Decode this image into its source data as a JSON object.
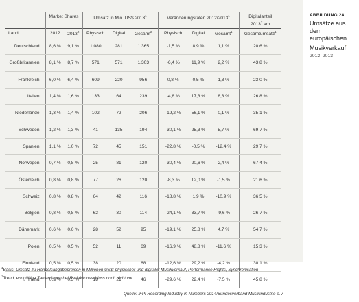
{
  "side": {
    "label": "ABBILDUNG 28:",
    "title_lines": [
      "Umsätze aus dem",
      "europäischen",
      "Musikverkauf"
    ],
    "title_sup": "1",
    "subtitle": "2012–2013"
  },
  "header": {
    "group_market": "Market Shares",
    "group_umsatz": "Umsatz in Mio. US$ 2013",
    "group_umsatz_sup": "1",
    "group_change": "Veränderungsraten 2012/2013",
    "group_change_sup": "1",
    "group_digital": "Digitalanteil",
    "group_digital2": "2013",
    "group_digital2_sup": "2",
    "group_digital3": " am",
    "col_land": "Land",
    "col_2012": "2012",
    "col_2013": "2013",
    "col_2013_sup": "2",
    "col_physisch": "Physisch",
    "col_digital": "Digital",
    "col_gesamt": "Gesamt",
    "col_gesamt_sup": "2",
    "col_physisch2": "Physisch",
    "col_digital2": "Digital",
    "col_gesamt2": "Gesamt",
    "col_gesamt2_sup": "1",
    "col_gesamtumsatz": "Gesamtumsatz",
    "col_gesamtumsatz_sup": "1"
  },
  "rows": [
    [
      "Deutschland",
      "8,6 %",
      "9,1 %",
      "1.080",
      "281",
      "1.365",
      "-1,5 %",
      "8,9 %",
      "1,1 %",
      "20,6 %"
    ],
    [
      "Großbritannien",
      "8,1 %",
      "8,7 %",
      "571",
      "571",
      "1.303",
      "-6,4 %",
      "11,9 %",
      "2,2 %",
      "43,8 %"
    ],
    [
      "Frankreich",
      "6,0 %",
      "6,4 %",
      "609",
      "220",
      "956",
      "0,8 %",
      "0,5 %",
      "1,3 %",
      "23,0 %"
    ],
    [
      "Italien",
      "1,4 %",
      "1,6 %",
      "133",
      "64",
      "239",
      "-4,8 %",
      "17,3 %",
      "8,3 %",
      "26,8 %"
    ],
    [
      "Niederlande",
      "1,3 %",
      "1,4 %",
      "102",
      "72",
      "206",
      "-19,2 %",
      "56,1 %",
      "0,1 %",
      "35,1 %"
    ],
    [
      "Schweden",
      "1,2 %",
      "1,3 %",
      "41",
      "135",
      "194",
      "-30,1 %",
      "25,3 %",
      "5,7 %",
      "69,7 %"
    ],
    [
      "Spanien",
      "1,1 %",
      "1,0 %",
      "72",
      "45",
      "151",
      "-22,8 %",
      "-0,5 %",
      "-12,4 %",
      "29,7 %"
    ],
    [
      "Norwegen",
      "0,7 %",
      "0,8 %",
      "25",
      "81",
      "120",
      "-30,4 %",
      "20,6 %",
      "2,4 %",
      "67,4 %"
    ],
    [
      "Österreich",
      "0,8 %",
      "0,8 %",
      "77",
      "26",
      "120",
      "-8,3 %",
      "12,0 %",
      "-1,5 %",
      "21,6 %"
    ],
    [
      "Schweiz",
      "0,8 %",
      "0,8 %",
      "64",
      "42",
      "116",
      "-18,8 %",
      "1,9 %",
      "-10,9 %",
      "36,5 %"
    ],
    [
      "Belgien",
      "0,8 %",
      "0,8 %",
      "62",
      "30",
      "114",
      "-24,1 %",
      "33,7 %",
      "-9,6 %",
      "26,7 %"
    ],
    [
      "Dänemark",
      "0,6 %",
      "0,6 %",
      "28",
      "52",
      "95",
      "-19,1 %",
      "25,8 %",
      "4,7 %",
      "54,7 %"
    ],
    [
      "Polen",
      "0,5 %",
      "0,5 %",
      "52",
      "11",
      "69",
      "-16,9 %",
      "48,8 %",
      "-11,6 %",
      "15,3 %"
    ],
    [
      "Finnland",
      "0,5 %",
      "0,5 %",
      "38",
      "20",
      "68",
      "-12,6 %",
      "29,2 %",
      "-4,2 %",
      "30,1 %"
    ],
    [
      "Irland",
      "0,3 %",
      "0,3 %",
      "18",
      "21",
      "46",
      "-29,6 %",
      "22,4 %",
      "-7,5 %",
      "45,8 %"
    ]
  ],
  "footnotes": {
    "n1_sup": "1",
    "n1": "Basis: Umsatz zu Handelsabgabepreisen in Millionen US$; physischer und digitaler Musikverkauf, Performance Rights, Synchronisation",
    "n2_sup": "2",
    "n2": "Trend, endgültige Zahlen lagen bei Redaktionsschluss noch nicht vor"
  },
  "source": "Quelle: IFPI Recording Industry in Numbers 2014/Bundesverband Musikindustrie e.V."
}
